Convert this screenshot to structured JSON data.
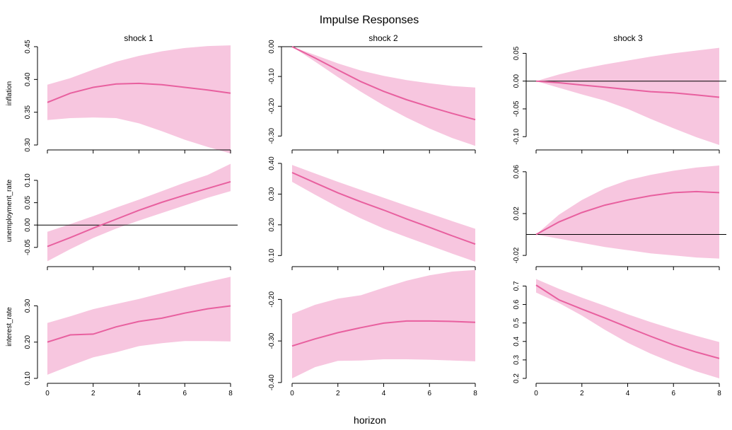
{
  "chart_data": {
    "type": "line",
    "title": "Impulse Responses",
    "xlabel": "horizon",
    "x": [
      0,
      1,
      2,
      3,
      4,
      5,
      6,
      7,
      8
    ],
    "x_ticks": [
      0,
      2,
      4,
      6,
      8
    ],
    "xlim": [
      0,
      8
    ],
    "shocks": [
      "shock 1",
      "shock 2",
      "shock 3"
    ],
    "variables": [
      "inflation",
      "unemployment_rate",
      "interest_rate"
    ],
    "colors": {
      "band": "#f7c6df",
      "line": "#e8609f",
      "axis": "#000000",
      "zero_line": "#000000"
    },
    "panels": [
      {
        "row": 0,
        "col": 0,
        "ylim": [
          0.3,
          0.45
        ],
        "yticks": [
          {
            "v": 0.3,
            "l": "0.30"
          },
          {
            "v": 0.35,
            "l": "0.35"
          },
          {
            "v": 0.4,
            "l": "0.40"
          },
          {
            "v": 0.45,
            "l": "0.45"
          }
        ],
        "zero_line": false,
        "median": [
          0.365,
          0.379,
          0.388,
          0.393,
          0.394,
          0.392,
          0.388,
          0.384,
          0.379
        ],
        "lower": [
          0.338,
          0.341,
          0.342,
          0.341,
          0.333,
          0.321,
          0.308,
          0.297,
          0.287
        ],
        "upper": [
          0.392,
          0.402,
          0.415,
          0.427,
          0.436,
          0.443,
          0.448,
          0.451,
          0.452
        ]
      },
      {
        "row": 0,
        "col": 1,
        "ylim": [
          -0.33,
          0.0
        ],
        "yticks": [
          {
            "v": -0.3,
            "l": "-0.30"
          },
          {
            "v": -0.2,
            "l": "-0.20"
          },
          {
            "v": -0.1,
            "l": "-0.10"
          },
          {
            "v": 0.0,
            "l": "0.00"
          }
        ],
        "zero_line": true,
        "median": [
          0.0,
          -0.038,
          -0.078,
          -0.117,
          -0.15,
          -0.178,
          -0.202,
          -0.224,
          -0.245
        ],
        "lower": [
          0.0,
          -0.05,
          -0.102,
          -0.151,
          -0.197,
          -0.238,
          -0.275,
          -0.307,
          -0.333
        ],
        "upper": [
          0.0,
          -0.028,
          -0.056,
          -0.08,
          -0.098,
          -0.112,
          -0.123,
          -0.132,
          -0.137
        ]
      },
      {
        "row": 0,
        "col": 2,
        "ylim": [
          -0.115,
          0.062
        ],
        "yticks": [
          {
            "v": -0.1,
            "l": "-0.10"
          },
          {
            "v": -0.05,
            "l": "-0.05"
          },
          {
            "v": 0.0,
            "l": "0.00"
          },
          {
            "v": 0.05,
            "l": "0.05"
          }
        ],
        "zero_line": true,
        "median": [
          0.0,
          -0.003,
          -0.007,
          -0.011,
          -0.015,
          -0.019,
          -0.021,
          -0.025,
          -0.029
        ],
        "lower": [
          0.0,
          -0.012,
          -0.024,
          -0.035,
          -0.05,
          -0.068,
          -0.085,
          -0.101,
          -0.115
        ],
        "upper": [
          0.0,
          0.012,
          0.022,
          0.03,
          0.037,
          0.044,
          0.05,
          0.055,
          0.06
        ]
      },
      {
        "row": 1,
        "col": 0,
        "ylim": [
          -0.082,
          0.138
        ],
        "yticks": [
          {
            "v": -0.05,
            "l": "-0.05"
          },
          {
            "v": 0.0,
            "l": "0.00"
          },
          {
            "v": 0.05,
            "l": "0.05"
          },
          {
            "v": 0.1,
            "l": "0.10"
          }
        ],
        "zero_line": true,
        "median": [
          -0.048,
          -0.028,
          -0.007,
          0.013,
          0.033,
          0.051,
          0.067,
          0.082,
          0.097
        ],
        "lower": [
          -0.081,
          -0.054,
          -0.029,
          -0.008,
          0.01,
          0.027,
          0.044,
          0.061,
          0.076
        ],
        "upper": [
          -0.015,
          0.002,
          0.02,
          0.039,
          0.057,
          0.076,
          0.095,
          0.112,
          0.137
        ]
      },
      {
        "row": 1,
        "col": 1,
        "ylim": [
          0.08,
          0.4
        ],
        "yticks": [
          {
            "v": 0.1,
            "l": "0.10"
          },
          {
            "v": 0.2,
            "l": "0.20"
          },
          {
            "v": 0.3,
            "l": "0.30"
          },
          {
            "v": 0.4,
            "l": "0.40"
          }
        ],
        "zero_line": false,
        "median": [
          0.37,
          0.337,
          0.304,
          0.275,
          0.248,
          0.219,
          0.192,
          0.164,
          0.137
        ],
        "lower": [
          0.34,
          0.298,
          0.258,
          0.221,
          0.188,
          0.16,
          0.133,
          0.106,
          0.08
        ],
        "upper": [
          0.395,
          0.367,
          0.34,
          0.314,
          0.288,
          0.262,
          0.237,
          0.212,
          0.187
        ]
      },
      {
        "row": 1,
        "col": 2,
        "ylim": [
          -0.026,
          0.068
        ],
        "yticks": [
          {
            "v": -0.02,
            "l": "-0.02"
          },
          {
            "v": 0.02,
            "l": "0.02"
          },
          {
            "v": 0.06,
            "l": "0.06"
          }
        ],
        "zero_line": true,
        "median": [
          0.0,
          0.012,
          0.021,
          0.028,
          0.033,
          0.037,
          0.04,
          0.041,
          0.04
        ],
        "lower": [
          0.0,
          -0.004,
          -0.008,
          -0.012,
          -0.015,
          -0.018,
          -0.02,
          -0.022,
          -0.023
        ],
        "upper": [
          0.0,
          0.019,
          0.033,
          0.044,
          0.052,
          0.057,
          0.061,
          0.064,
          0.066
        ]
      },
      {
        "row": 2,
        "col": 0,
        "ylim": [
          0.1,
          0.375
        ],
        "yticks": [
          {
            "v": 0.1,
            "l": "0.10"
          },
          {
            "v": 0.2,
            "l": "0.20"
          },
          {
            "v": 0.3,
            "l": "0.30"
          }
        ],
        "zero_line": false,
        "median": [
          0.2,
          0.22,
          0.222,
          0.242,
          0.257,
          0.266,
          0.28,
          0.292,
          0.3
        ],
        "lower": [
          0.11,
          0.135,
          0.158,
          0.172,
          0.189,
          0.197,
          0.203,
          0.203,
          0.202
        ],
        "upper": [
          0.253,
          0.271,
          0.291,
          0.305,
          0.319,
          0.335,
          0.351,
          0.366,
          0.38
        ]
      },
      {
        "row": 2,
        "col": 1,
        "ylim": [
          -0.39,
          -0.15
        ],
        "yticks": [
          {
            "v": -0.4,
            "l": "-0.40"
          },
          {
            "v": -0.3,
            "l": "-0.30"
          },
          {
            "v": -0.2,
            "l": "-0.20"
          }
        ],
        "zero_line": false,
        "median": [
          -0.312,
          -0.295,
          -0.28,
          -0.268,
          -0.257,
          -0.252,
          -0.252,
          -0.253,
          -0.255
        ],
        "lower": [
          -0.39,
          -0.363,
          -0.348,
          -0.347,
          -0.344,
          -0.344,
          -0.345,
          -0.347,
          -0.349
        ],
        "upper": [
          -0.235,
          -0.213,
          -0.198,
          -0.19,
          -0.172,
          -0.155,
          -0.142,
          -0.133,
          -0.129
        ]
      },
      {
        "row": 2,
        "col": 2,
        "ylim": [
          0.2,
          0.74
        ],
        "yticks": [
          {
            "v": 0.2,
            "l": "0.2"
          },
          {
            "v": 0.3,
            "l": "0.3"
          },
          {
            "v": 0.4,
            "l": "0.4"
          },
          {
            "v": 0.5,
            "l": "0.5"
          },
          {
            "v": 0.6,
            "l": "0.6"
          },
          {
            "v": 0.7,
            "l": "0.7"
          }
        ],
        "zero_line": false,
        "median": [
          0.705,
          0.625,
          0.575,
          0.527,
          0.477,
          0.428,
          0.381,
          0.342,
          0.308
        ],
        "lower": [
          0.665,
          0.608,
          0.54,
          0.463,
          0.393,
          0.334,
          0.283,
          0.238,
          0.2
        ],
        "upper": [
          0.738,
          0.685,
          0.637,
          0.593,
          0.547,
          0.505,
          0.466,
          0.43,
          0.397
        ]
      }
    ]
  }
}
